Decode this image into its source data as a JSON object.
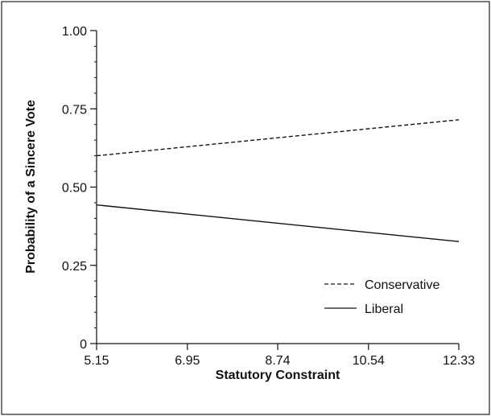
{
  "chart_data": {
    "type": "line",
    "xlabel": "Statutory Constraint",
    "ylabel": "Probability of a Sincere Vote",
    "xlim": [
      5.15,
      12.33
    ],
    "ylim": [
      0,
      1.0
    ],
    "x_ticks": [
      5.15,
      6.95,
      8.74,
      10.54,
      12.33
    ],
    "x_tick_labels": [
      "5.15",
      "6.95",
      "8.74",
      "10.54",
      "12.33"
    ],
    "y_ticks": [
      0,
      0.25,
      0.5,
      0.75,
      1.0
    ],
    "y_tick_labels": [
      "0",
      "0.25",
      "0.50",
      "0.75",
      "1.00"
    ],
    "grid": false,
    "legend_position": "bottom-right",
    "series": [
      {
        "name": "Conservative",
        "style": "dashed",
        "x": [
          5.15,
          12.33
        ],
        "y": [
          0.6,
          0.715
        ]
      },
      {
        "name": "Liberal",
        "style": "solid",
        "x": [
          5.15,
          12.33
        ],
        "y": [
          0.443,
          0.326
        ]
      }
    ]
  }
}
